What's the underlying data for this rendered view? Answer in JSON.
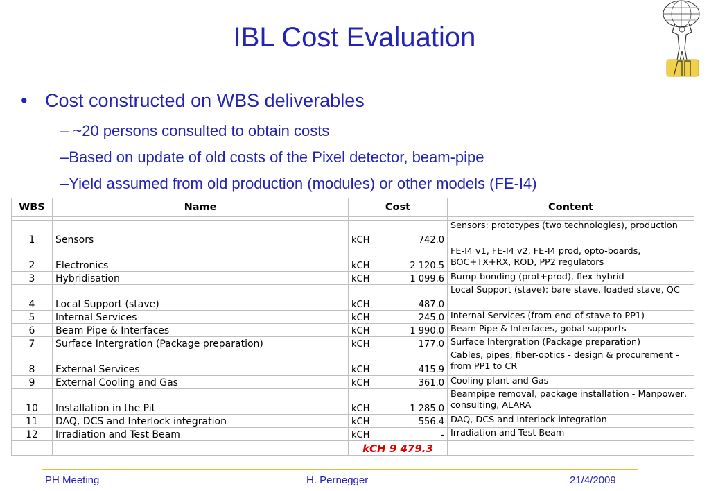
{
  "title": "IBL Cost Evaluation",
  "bullets": {
    "main": "Cost constructed on WBS deliverables",
    "sub": [
      "~20 persons consulted to obtain costs",
      "Based on update of old costs of the Pixel detector, beam-pipe",
      "Yield assumed from old production (modules) or other models (FE-I4)"
    ]
  },
  "table": {
    "headers": {
      "wbs": "WBS",
      "name": "Name",
      "cost": "Cost",
      "content": "Content"
    },
    "rows": [
      {
        "wbs": "1",
        "name": "Sensors",
        "unit": "kCH",
        "cost": "742.0",
        "content": "Sensors: prototypes (two technologies), production"
      },
      {
        "wbs": "2",
        "name": "Electronics",
        "unit": "kCH",
        "cost": "2 120.5",
        "content": "FE-I4 v1, FE-I4 v2, FE-I4 prod, opto-boards, BOC+TX+RX, ROD, PP2 regulators"
      },
      {
        "wbs": "3",
        "name": "Hybridisation",
        "unit": "kCH",
        "cost": "1 099.6",
        "content": "Bump-bonding (prot+prod), flex-hybrid"
      },
      {
        "wbs": "4",
        "name": "Local Support (stave)",
        "unit": "kCH",
        "cost": "487.0",
        "content": "Local Support (stave): bare stave, loaded stave, QC"
      },
      {
        "wbs": "5",
        "name": "Internal Services",
        "unit": "kCH",
        "cost": "245.0",
        "content": "Internal Services (from end-of-stave to PP1)"
      },
      {
        "wbs": "6",
        "name": "Beam Pipe & Interfaces",
        "unit": "kCH",
        "cost": "1 990.0",
        "content": "Beam Pipe & Interfaces, gobal supports"
      },
      {
        "wbs": "7",
        "name": "Surface Intergration  (Package preparation)",
        "unit": "kCH",
        "cost": "177.0",
        "content": "Surface Intergration  (Package preparation)"
      },
      {
        "wbs": "8",
        "name": "External Services",
        "unit": "kCH",
        "cost": "415.9",
        "content": "Cables, pipes, fiber-optics - design & procurement - from PP1 to CR"
      },
      {
        "wbs": "9",
        "name": "External Cooling and Gas",
        "unit": "kCH",
        "cost": "361.0",
        "content": "Cooling plant and Gas"
      },
      {
        "wbs": "10",
        "name": "Installation in the Pit",
        "unit": "kCH",
        "cost": "1 285.0",
        "content": "Beampipe removal, package installation - Manpower, consulting, ALARA"
      },
      {
        "wbs": "11",
        "name": "DAQ, DCS and Interlock integration",
        "unit": "kCH",
        "cost": "556.4",
        "content": "DAQ, DCS and Interlock integration"
      },
      {
        "wbs": "12",
        "name": "Irradiation and Test Beam",
        "unit": "kCH",
        "cost": "-",
        "content": "Irradiation and Test Beam"
      }
    ],
    "total": "kCH 9 479.3"
  },
  "footer": {
    "left": "PH Meeting",
    "center": "H. Pernegger",
    "right": "21/4/2009"
  },
  "colors": {
    "title": "#2424b4",
    "total": "#e00000",
    "footer_line": "#e0c030"
  },
  "icons": {
    "logo": "atlas-logo-icon"
  }
}
